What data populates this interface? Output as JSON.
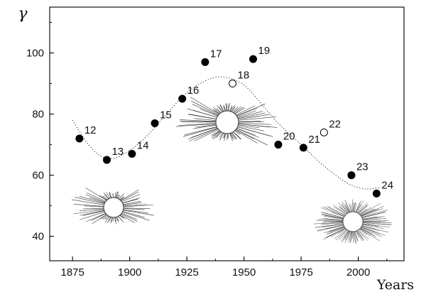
{
  "chart_data": {
    "type": "scatter",
    "ylabel": "γ",
    "xlabel": "Years",
    "xlim": [
      1865,
      2020
    ],
    "ylim": [
      32,
      115
    ],
    "x_ticks": [
      1875,
      1900,
      1925,
      1950,
      1975,
      2000
    ],
    "y_ticks": [
      40,
      60,
      80,
      100
    ],
    "grid": false,
    "series": [
      {
        "marker": "filled-circle",
        "points": [
          {
            "x": 1878,
            "y": 72,
            "label": "12"
          },
          {
            "x": 1890,
            "y": 65,
            "label": "13"
          },
          {
            "x": 1901,
            "y": 67,
            "label": "14"
          },
          {
            "x": 1911,
            "y": 77,
            "label": "15"
          },
          {
            "x": 1923,
            "y": 85,
            "label": "16"
          },
          {
            "x": 1933,
            "y": 97,
            "label": "17"
          },
          {
            "x": 1954,
            "y": 98,
            "label": "19"
          },
          {
            "x": 1965,
            "y": 70,
            "label": "20"
          },
          {
            "x": 1976,
            "y": 69,
            "label": "21"
          },
          {
            "x": 1997,
            "y": 60,
            "label": "23"
          },
          {
            "x": 2008,
            "y": 54,
            "label": "24"
          }
        ]
      },
      {
        "marker": "open-circle",
        "points": [
          {
            "x": 1945,
            "y": 90,
            "label": "18"
          },
          {
            "x": 1985,
            "y": 74,
            "label": "22"
          }
        ]
      }
    ],
    "trend_line": {
      "style": "dotted",
      "x": [
        1875,
        1882,
        1888,
        1895,
        1905,
        1915,
        1925,
        1935,
        1942,
        1950,
        1958,
        1965,
        1975,
        1985,
        1995,
        2003,
        2010
      ],
      "y": [
        78,
        70,
        66,
        66,
        71,
        79,
        87,
        91.5,
        92,
        89.5,
        83,
        77,
        70,
        63,
        57.5,
        55.5,
        56
      ]
    },
    "insets": [
      "corona-drawing-bottom-left",
      "corona-drawing-center",
      "corona-photo-bottom-right"
    ]
  }
}
